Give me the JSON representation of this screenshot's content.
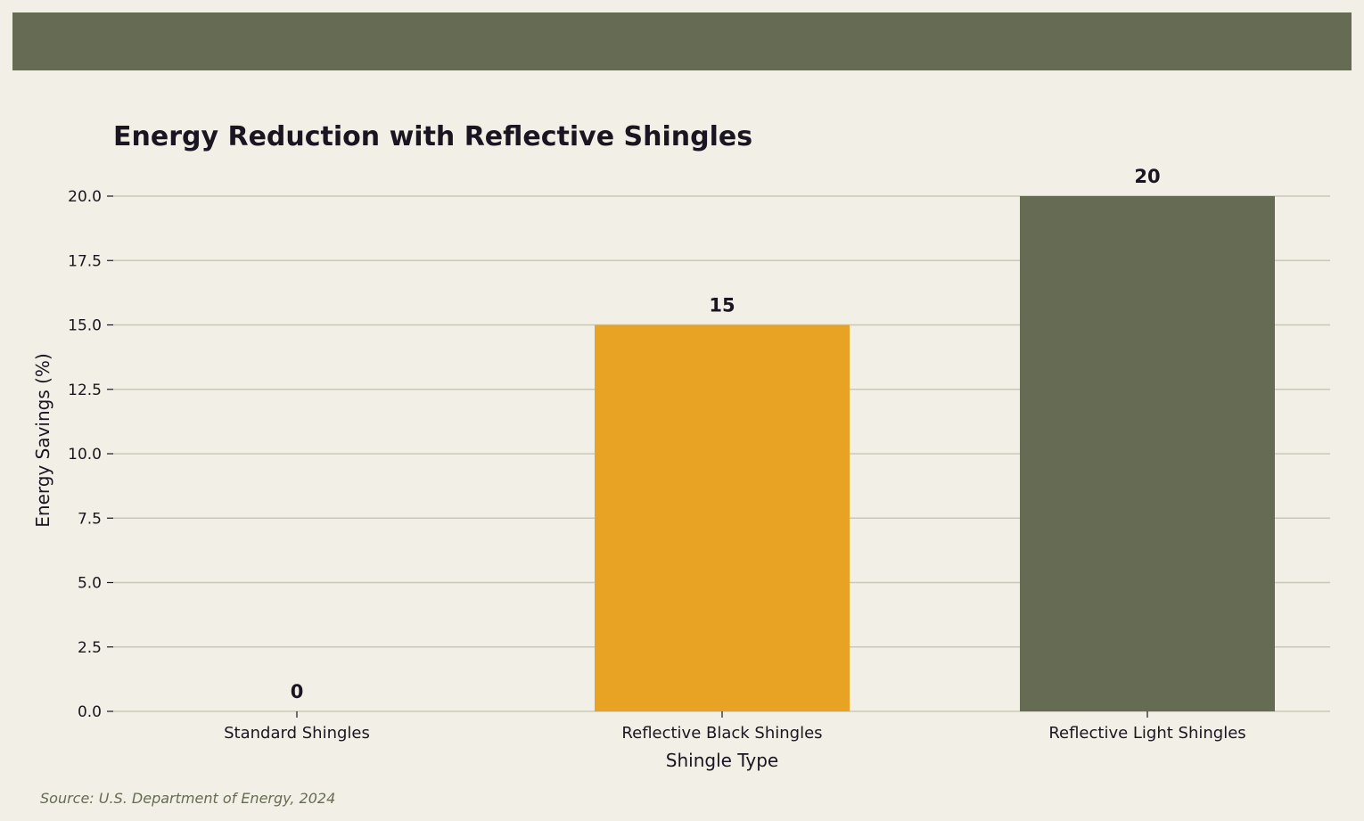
{
  "colors": {
    "background": "#f2efe6",
    "header_band": "#666b53",
    "grid": "#c9c8b6",
    "text": "#1a1520",
    "source_text": "#666b53",
    "bar_colors": [
      "#666b53",
      "#e8a224",
      "#666b53"
    ]
  },
  "source": "Source: U.S. Department of Energy, 2024",
  "chart_data": {
    "type": "bar",
    "title": "Energy Reduction with Reflective Shingles",
    "xlabel": "Shingle Type",
    "ylabel": "Energy Savings (%)",
    "categories": [
      "Standard Shingles",
      "Reflective Black Shingles",
      "Reflective Light Shingles"
    ],
    "values": [
      0,
      15,
      20
    ],
    "value_labels": [
      "0",
      "15",
      "20"
    ],
    "ylim": [
      0,
      20
    ],
    "yticks": [
      0.0,
      2.5,
      5.0,
      7.5,
      10.0,
      12.5,
      15.0,
      17.5,
      20.0
    ],
    "ytick_labels": [
      "0.0",
      "2.5",
      "5.0",
      "7.5",
      "10.0",
      "12.5",
      "15.0",
      "17.5",
      "20.0"
    ],
    "grid": true,
    "legend": "none"
  }
}
